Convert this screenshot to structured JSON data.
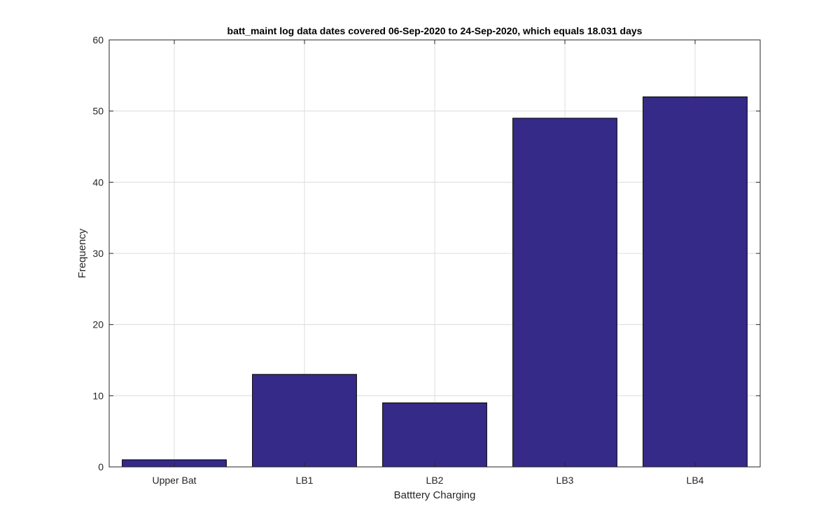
{
  "colors": {
    "bar_fill": "#352A87",
    "bar_edge": "#000000",
    "grid": "#dcdcdc",
    "axes": "#262626",
    "background": "#ffffff"
  },
  "chart_data": {
    "type": "bar",
    "title": "batt_maint log data  dates covered 06-Sep-2020 to 24-Sep-2020, which equals 18.031 days",
    "xlabel": "Batttery Charging",
    "ylabel": "Frequency",
    "categories": [
      "Upper Bat",
      "LB1",
      "LB2",
      "LB3",
      "LB4"
    ],
    "values": [
      1,
      13,
      9,
      49,
      52
    ],
    "ylim": [
      0,
      60
    ],
    "yticks": [
      0,
      10,
      20,
      30,
      40,
      50,
      60
    ],
    "grid": true,
    "legend": false
  }
}
